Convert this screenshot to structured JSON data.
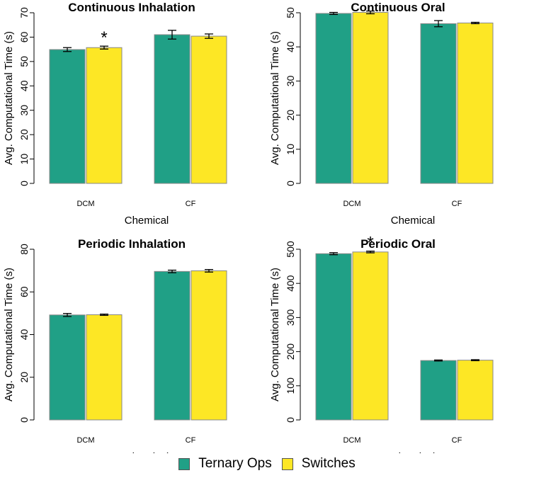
{
  "chart_data": [
    {
      "type": "bar",
      "title": "Continuous Inhalation",
      "xlabel": "Chemical",
      "ylabel": "Avg. Computational Time (s)",
      "categories": [
        "DCM",
        "CF"
      ],
      "ylim": [
        0,
        70
      ],
      "yticks": [
        0,
        10,
        20,
        30,
        40,
        50,
        60,
        70
      ],
      "series": [
        {
          "name": "Ternary Ops",
          "values": [
            54.9,
            61.0
          ],
          "errors": [
            0.8,
            1.8
          ]
        },
        {
          "name": "Switches",
          "values": [
            55.7,
            60.4
          ],
          "errors": [
            0.6,
            0.9
          ]
        }
      ],
      "annotations": [
        {
          "text": "*",
          "category": "DCM",
          "series": "Switches"
        }
      ]
    },
    {
      "type": "bar",
      "title": "Continuous Oral",
      "xlabel": "Chemical",
      "ylabel": "Avg. Computational Time (s)",
      "categories": [
        "DCM",
        "CF"
      ],
      "ylim": [
        0,
        50
      ],
      "yticks": [
        0,
        10,
        20,
        30,
        40,
        50
      ],
      "series": [
        {
          "name": "Ternary Ops",
          "values": [
            49.8,
            46.8
          ],
          "errors": [
            0.3,
            0.9
          ]
        },
        {
          "name": "Switches",
          "values": [
            50.1,
            47.0
          ],
          "errors": [
            0.4,
            0.2
          ]
        }
      ],
      "annotations": []
    },
    {
      "type": "bar",
      "title": "Periodic Inhalation",
      "xlabel": "Chemical",
      "ylabel": "Avg. Computational Time (s)",
      "categories": [
        "DCM",
        "CF"
      ],
      "ylim": [
        0,
        80
      ],
      "yticks": [
        0,
        20,
        40,
        60,
        80
      ],
      "series": [
        {
          "name": "Ternary Ops",
          "values": [
            49.2,
            69.6
          ],
          "errors": [
            0.7,
            0.6
          ]
        },
        {
          "name": "Switches",
          "values": [
            49.3,
            69.9
          ],
          "errors": [
            0.3,
            0.6
          ]
        }
      ],
      "annotations": []
    },
    {
      "type": "bar",
      "title": "Periodic Oral",
      "xlabel": "Chemical",
      "ylabel": "Avg. Computational Time (s)",
      "categories": [
        "DCM",
        "CF"
      ],
      "ylim": [
        0,
        500
      ],
      "yticks": [
        0,
        100,
        200,
        300,
        400,
        500
      ],
      "series": [
        {
          "name": "Ternary Ops",
          "values": [
            487,
            174
          ],
          "errors": [
            3,
            1.5
          ]
        },
        {
          "name": "Switches",
          "values": [
            492,
            175
          ],
          "errors": [
            2.5,
            1.5
          ]
        }
      ],
      "annotations": [
        {
          "text": "*",
          "category": "DCM",
          "series": "Switches"
        }
      ]
    }
  ],
  "legend": {
    "items": [
      {
        "label": "Ternary Ops",
        "color": "#20a086"
      },
      {
        "label": "Switches",
        "color": "#fde725"
      }
    ]
  },
  "colors": {
    "ternary": "#20a086",
    "switches": "#fde725",
    "bar_border": "#888888"
  }
}
